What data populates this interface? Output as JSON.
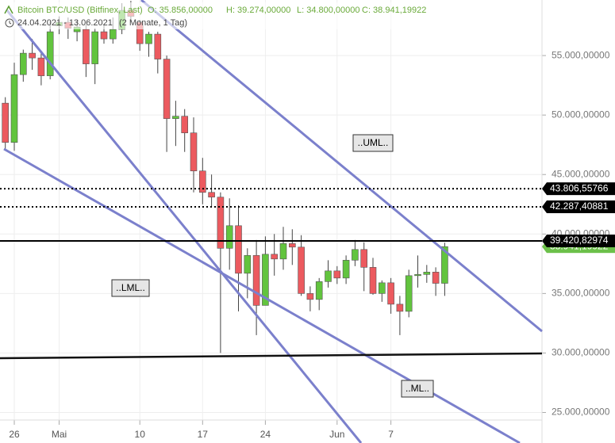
{
  "chart_data": {
    "type": "candlestick",
    "title": "Bitcoin BTC/USD (Bitfinex, Last)",
    "ohlc_texts": [
      "O: 35.856,00000",
      "H: 39.274,00000",
      "L: 34.800,00000",
      "C: 38.941,19922"
    ],
    "date_range": "24.04.2021 - 13.06.2021",
    "period": "(2 Monate, 1 Tag)",
    "categories": [
      null,
      "26",
      null,
      null,
      null,
      null,
      "Mai",
      null,
      null,
      null,
      null,
      null,
      null,
      null,
      null,
      "10",
      null,
      null,
      null,
      null,
      null,
      null,
      "17",
      null,
      null,
      null,
      null,
      null,
      null,
      "24",
      null,
      null,
      null,
      null,
      null,
      null,
      null,
      "Jun",
      null,
      null,
      null,
      null,
      null,
      "7",
      null,
      null,
      null,
      null,
      null,
      null
    ],
    "open": [
      51000,
      47700,
      53400,
      55200,
      54800,
      53300,
      57500,
      57800,
      57000,
      57200,
      54300,
      57000,
      56400,
      57200,
      58800,
      57800,
      56000,
      56800,
      54700,
      49700,
      49900,
      48500,
      45300,
      43500,
      43100,
      38800,
      40700,
      36700,
      38200,
      34000,
      38300,
      37900,
      39200,
      38900,
      35000,
      34500,
      36000,
      36900,
      36300,
      37800,
      38700,
      37200,
      35000,
      35900,
      34100,
      33500,
      36500,
      36600,
      36800,
      35856
    ],
    "high": [
      51500,
      54400,
      55500,
      56400,
      55400,
      57900,
      58300,
      58200,
      58000,
      57600,
      57300,
      57600,
      58200,
      59400,
      59600,
      58000,
      57000,
      57000,
      55000,
      51200,
      50500,
      49800,
      46400,
      45000,
      43500,
      43000,
      42400,
      38800,
      39500,
      39800,
      40000,
      40600,
      40400,
      39900,
      35600,
      36300,
      37800,
      37300,
      38200,
      39500,
      39300,
      38000,
      36100,
      36300,
      34800,
      37000,
      38200,
      37400,
      37200,
      39274
    ],
    "low": [
      47000,
      47000,
      52800,
      53800,
      52500,
      53000,
      56800,
      56400,
      56200,
      53200,
      52600,
      56000,
      56000,
      56800,
      57800,
      55400,
      54900,
      53500,
      46900,
      47400,
      46900,
      43500,
      42500,
      42300,
      30000,
      37000,
      33500,
      34600,
      31500,
      34000,
      36500,
      37000,
      37400,
      34800,
      33500,
      33600,
      35500,
      35800,
      35800,
      37300,
      35200,
      34900,
      34300,
      33300,
      31500,
      33000,
      35500,
      35900,
      34800,
      34800
    ],
    "close": [
      47700,
      53400,
      55200,
      54800,
      53300,
      57000,
      57800,
      57300,
      57400,
      54300,
      57000,
      56400,
      57200,
      58800,
      58300,
      56000,
      56800,
      54700,
      49700,
      49900,
      48500,
      45300,
      43500,
      43100,
      38800,
      40700,
      36700,
      38200,
      34000,
      38300,
      37900,
      39200,
      38900,
      35000,
      34500,
      36000,
      36900,
      36300,
      37800,
      38700,
      37200,
      35000,
      35900,
      34100,
      33500,
      36500,
      36600,
      36800,
      35856,
      38941.19922
    ],
    "up_color": "#62c43e",
    "down_color": "#ec5a5f",
    "ylim": [
      23700,
      59670
    ],
    "yticks": [
      {
        "value": 25000,
        "label": "25.000,00000"
      },
      {
        "value": 30000,
        "label": "30.000,00000"
      },
      {
        "value": 35000,
        "label": "35.000,00000"
      },
      {
        "value": 40000,
        "label": "40.000,00000"
      },
      {
        "value": 45000,
        "label": "45.000,00000"
      },
      {
        "value": 50000,
        "label": "50.000,00000"
      },
      {
        "value": 55000,
        "label": "55.000,00000"
      }
    ],
    "grid": true,
    "levels": [
      {
        "value": 43806.55766,
        "label": "43.806,55766",
        "style": "dotted"
      },
      {
        "value": 42287.40881,
        "label": "42.287,40881",
        "style": "dotted"
      },
      {
        "value": 39420.82974,
        "label": "39.420,82974",
        "style": "solid"
      }
    ],
    "price_label": {
      "value": 38941.19922,
      "label": "38.941,19922"
    },
    "annotations": [
      "..UML..",
      "..LML..",
      "..ML.."
    ]
  }
}
